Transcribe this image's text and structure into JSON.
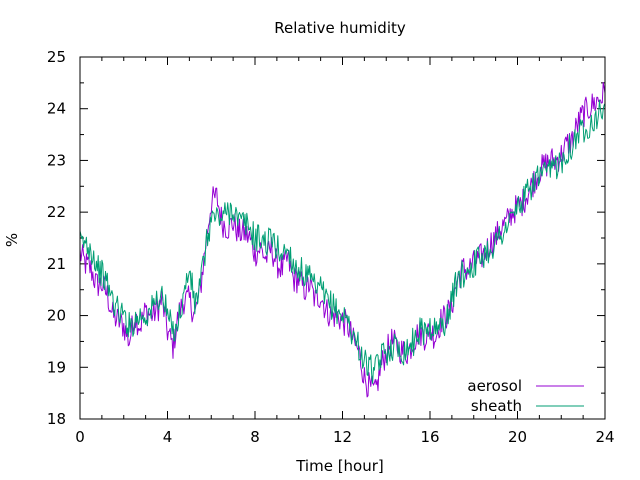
{
  "chart_data": {
    "type": "line",
    "title": "Relative humidity",
    "xlabel": "Time [hour]",
    "ylabel": "%",
    "xlim": [
      0,
      24
    ],
    "ylim": [
      18,
      25
    ],
    "xticks": [
      0,
      4,
      8,
      12,
      16,
      20,
      24
    ],
    "yticks": [
      18,
      19,
      20,
      21,
      22,
      23,
      24,
      25
    ],
    "x_minor_step": 1,
    "y_minor_step": 0.5,
    "grid": false,
    "legend_position": "bottom-right",
    "series": [
      {
        "name": "aerosol",
        "color": "#9400d3",
        "x": [
          0,
          0.25,
          0.5,
          0.75,
          1,
          1.25,
          1.5,
          1.75,
          2,
          2.25,
          2.5,
          2.75,
          3,
          3.25,
          3.5,
          3.75,
          4,
          4.25,
          4.5,
          4.75,
          5,
          5.25,
          5.5,
          5.75,
          6,
          6.25,
          6.5,
          6.75,
          7,
          7.25,
          7.5,
          7.75,
          8,
          8.25,
          8.5,
          8.75,
          9,
          9.25,
          9.5,
          9.75,
          10,
          10.25,
          10.5,
          10.75,
          11,
          11.25,
          11.5,
          11.75,
          12,
          12.25,
          12.5,
          12.75,
          13,
          13.25,
          13.5,
          13.75,
          14,
          14.25,
          14.5,
          14.75,
          15,
          15.25,
          15.5,
          15.75,
          16,
          16.25,
          16.5,
          16.75,
          17,
          17.25,
          17.5,
          17.75,
          18,
          18.25,
          18.5,
          18.75,
          19,
          19.25,
          19.5,
          19.75,
          20,
          20.25,
          20.5,
          20.75,
          21,
          21.25,
          21.5,
          21.75,
          22,
          22.25,
          22.5,
          22.75,
          23,
          23.25,
          23.5,
          23.75,
          24
        ],
        "y": [
          21.2,
          21.0,
          20.9,
          20.6,
          20.6,
          20.4,
          20.0,
          19.9,
          19.8,
          19.5,
          20.0,
          19.8,
          20.1,
          20.0,
          20.1,
          20.3,
          19.7,
          19.4,
          20.0,
          20.3,
          20.3,
          20.0,
          20.5,
          21.4,
          22.2,
          22.3,
          21.8,
          21.7,
          21.8,
          21.6,
          21.6,
          21.5,
          21.2,
          21.3,
          21.1,
          21.3,
          21.0,
          20.9,
          21.1,
          20.7,
          20.7,
          20.5,
          20.6,
          20.3,
          20.4,
          20.1,
          20.0,
          20.0,
          19.9,
          19.8,
          19.5,
          19.3,
          18.8,
          18.6,
          18.5,
          19.0,
          19.3,
          19.5,
          19.4,
          19.3,
          19.3,
          19.5,
          19.7,
          19.6,
          19.7,
          19.6,
          19.9,
          20.0,
          20.2,
          20.7,
          20.9,
          20.9,
          21.0,
          21.1,
          21.2,
          21.4,
          21.5,
          21.7,
          21.8,
          22.0,
          22.1,
          22.2,
          22.4,
          22.6,
          22.8,
          22.9,
          23.0,
          23.0,
          23.1,
          23.3,
          23.4,
          23.7,
          23.9,
          24.0,
          24.1,
          24.2,
          24.3
        ]
      },
      {
        "name": "sheath",
        "color": "#009e73",
        "x": [
          0,
          0.25,
          0.5,
          0.75,
          1,
          1.25,
          1.5,
          1.75,
          2,
          2.25,
          2.5,
          2.75,
          3,
          3.25,
          3.5,
          3.75,
          4,
          4.25,
          4.5,
          4.75,
          5,
          5.25,
          5.5,
          5.75,
          6,
          6.25,
          6.5,
          6.75,
          7,
          7.25,
          7.5,
          7.75,
          8,
          8.25,
          8.5,
          8.75,
          9,
          9.25,
          9.5,
          9.75,
          10,
          10.25,
          10.5,
          10.75,
          11,
          11.25,
          11.5,
          11.75,
          12,
          12.25,
          12.5,
          12.75,
          13,
          13.25,
          13.5,
          13.75,
          14,
          14.25,
          14.5,
          14.75,
          15,
          15.25,
          15.5,
          15.75,
          16,
          16.25,
          16.5,
          16.75,
          17,
          17.25,
          17.5,
          17.75,
          18,
          18.25,
          18.5,
          18.75,
          19,
          19.25,
          19.5,
          19.75,
          20,
          20.25,
          20.5,
          20.75,
          21,
          21.25,
          21.5,
          21.75,
          22,
          22.25,
          22.5,
          22.75,
          23,
          23.25,
          23.5,
          23.75,
          24
        ],
        "y": [
          21.4,
          21.4,
          21.3,
          21.0,
          20.8,
          20.6,
          20.3,
          20.1,
          20.0,
          19.8,
          19.9,
          20.0,
          20.0,
          20.1,
          20.3,
          20.4,
          20.0,
          19.7,
          19.9,
          20.4,
          20.9,
          20.2,
          20.6,
          21.3,
          21.9,
          21.9,
          21.9,
          22.0,
          22.1,
          21.8,
          21.8,
          21.7,
          21.5,
          21.5,
          21.4,
          21.5,
          21.3,
          21.2,
          21.3,
          21.0,
          20.9,
          20.8,
          20.7,
          20.5,
          20.5,
          20.3,
          20.2,
          20.1,
          20.0,
          19.9,
          19.6,
          19.4,
          19.1,
          19.0,
          18.9,
          19.2,
          19.3,
          19.4,
          19.4,
          19.3,
          19.4,
          19.5,
          19.7,
          19.7,
          19.8,
          19.7,
          19.8,
          19.9,
          20.3,
          20.7,
          20.8,
          20.9,
          21.0,
          21.1,
          21.2,
          21.3,
          21.4,
          21.6,
          21.7,
          21.9,
          22.1,
          22.2,
          22.4,
          22.6,
          22.7,
          22.7,
          22.8,
          22.9,
          23.0,
          23.2,
          23.3,
          23.5,
          23.6,
          23.7,
          23.8,
          23.9,
          24.1
        ]
      }
    ]
  }
}
